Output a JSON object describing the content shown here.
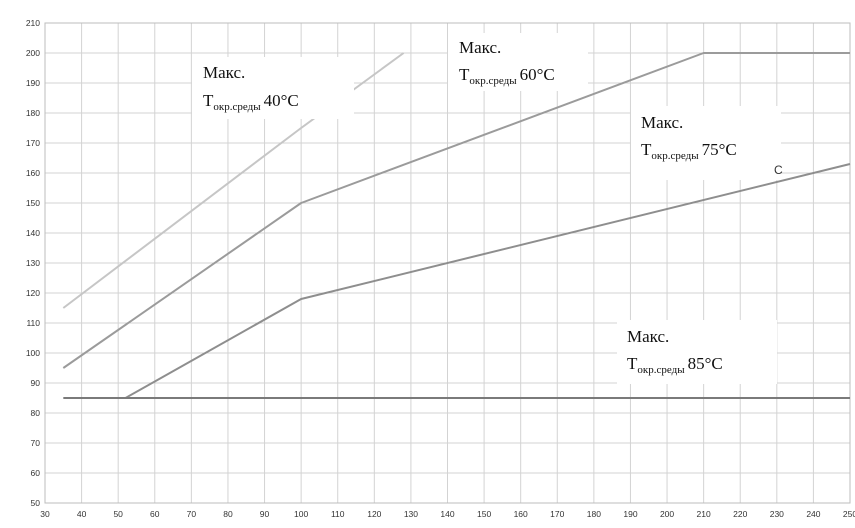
{
  "chart_data": {
    "type": "line",
    "title": "",
    "xlabel": "",
    "ylabel": "",
    "xlim": [
      30,
      250
    ],
    "ylim": [
      50,
      210
    ],
    "x_ticks": [
      30,
      40,
      50,
      60,
      70,
      80,
      90,
      100,
      110,
      120,
      130,
      140,
      150,
      160,
      170,
      180,
      190,
      200,
      210,
      220,
      230,
      240,
      250
    ],
    "y_ticks": [
      50,
      60,
      70,
      80,
      90,
      100,
      110,
      120,
      130,
      140,
      150,
      160,
      170,
      180,
      190,
      200,
      210
    ],
    "grid": true,
    "series": [
      {
        "color": "#c6c6c6",
        "points": [
          [
            35,
            115
          ],
          [
            100,
            175
          ],
          [
            128,
            200
          ]
        ]
      },
      {
        "color": "#9b9b9b",
        "points": [
          [
            35,
            95
          ],
          [
            100,
            150
          ],
          [
            210,
            200
          ],
          [
            250,
            200
          ]
        ]
      },
      {
        "color": "#8e8e8e",
        "points": [
          [
            52,
            85
          ],
          [
            100,
            118
          ],
          [
            250,
            163
          ]
        ]
      },
      {
        "color": "#7a7a7a",
        "points": [
          [
            35,
            85
          ],
          [
            250,
            85
          ]
        ]
      }
    ],
    "annotations": [
      {
        "line1": "Макс.",
        "sym": "T",
        "sub": "окр.среды",
        "value": "40°C"
      },
      {
        "line1": "Макс.",
        "sym": "T",
        "sub": "окр.среды",
        "value": "60°C"
      },
      {
        "line1": "Макс.",
        "sym": "T",
        "sub": "окр.среды",
        "value": "75°C"
      },
      {
        "line1": "Макс.",
        "sym": "T",
        "sub": "окр.среды",
        "value": "85°C"
      }
    ],
    "stray_text": "C"
  }
}
